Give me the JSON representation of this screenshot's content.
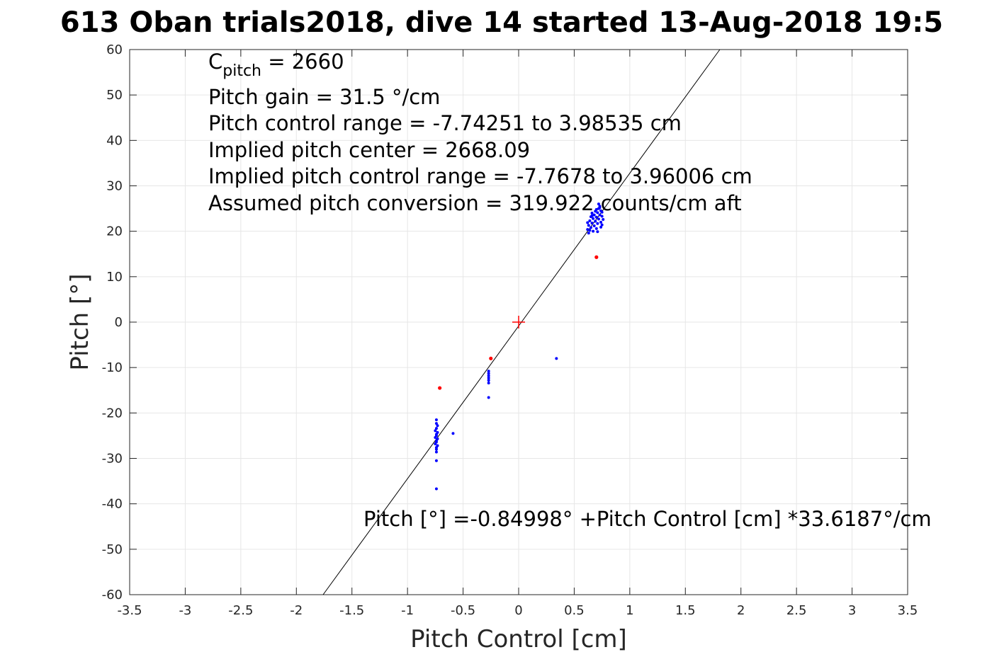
{
  "chart_data": {
    "type": "scatter",
    "title": "613 Oban trials2018, dive 14 started 13-Aug-2018 19:5",
    "xlabel": "Pitch Control [cm]",
    "ylabel": "Pitch [°]",
    "xlim": [
      -3.5,
      3.5
    ],
    "ylim": [
      -60,
      60
    ],
    "xticks": [
      -3.5,
      -3,
      -2.5,
      -2,
      -1.5,
      -1,
      -0.5,
      0,
      0.5,
      1,
      1.5,
      2,
      2.5,
      3,
      3.5
    ],
    "yticks": [
      -60,
      -50,
      -40,
      -30,
      -20,
      -10,
      0,
      10,
      20,
      30,
      40,
      50,
      60
    ],
    "grid": true,
    "annotations": {
      "cpitch_prefix": "C",
      "cpitch_sub": "pitch",
      "cpitch_value": " = 2660",
      "pitch_gain": "Pitch gain = 31.5 °/cm",
      "pitch_control_range": "Pitch control range = -7.74251 to 3.98535 cm",
      "implied_center": "Implied pitch center = 2668.09",
      "implied_range": "Implied pitch control range = -7.7678 to 3.96006 cm",
      "assumed_conversion": "Assumed pitch conversion = 319.922 counts/cm aft",
      "fit_equation": "Pitch [°] =-0.84998° +Pitch Control [cm] *33.6187°/cm"
    },
    "fit_line": {
      "intercept": -0.84998,
      "slope": 33.6187,
      "color": "#000000"
    },
    "center_marker": {
      "x": 0,
      "y": 0,
      "color": "#ff0000"
    },
    "series": [
      {
        "color": "#0000ff",
        "points": [
          [
            -0.74,
            -21.5
          ],
          [
            -0.74,
            -22.3
          ],
          [
            -0.73,
            -22.8
          ],
          [
            -0.74,
            -23.4
          ],
          [
            -0.75,
            -23.9
          ],
          [
            -0.73,
            -24.3
          ],
          [
            -0.74,
            -24.7
          ],
          [
            -0.74,
            -25.0
          ],
          [
            -0.75,
            -25.4
          ],
          [
            -0.73,
            -25.7
          ],
          [
            -0.74,
            -26.1
          ],
          [
            -0.74,
            -26.4
          ],
          [
            -0.75,
            -26.8
          ],
          [
            -0.73,
            -27.2
          ],
          [
            -0.74,
            -27.6
          ],
          [
            -0.74,
            -28.0
          ],
          [
            -0.74,
            -28.6
          ],
          [
            -0.74,
            -30.5
          ],
          [
            -0.74,
            -36.7
          ],
          [
            -0.59,
            -24.5
          ],
          [
            -0.27,
            -10.8
          ],
          [
            -0.27,
            -11.3
          ],
          [
            -0.27,
            -11.8
          ],
          [
            -0.27,
            -12.3
          ],
          [
            -0.27,
            -12.8
          ],
          [
            -0.27,
            -13.4
          ],
          [
            -0.27,
            -16.6
          ],
          [
            0.34,
            -8.0
          ],
          [
            0.63,
            19.6
          ],
          [
            0.64,
            20.2
          ],
          [
            0.65,
            20.8
          ],
          [
            0.63,
            21.3
          ],
          [
            0.66,
            21.8
          ],
          [
            0.64,
            22.3
          ],
          [
            0.67,
            22.8
          ],
          [
            0.65,
            23.2
          ],
          [
            0.68,
            23.6
          ],
          [
            0.66,
            24.0
          ],
          [
            0.69,
            24.4
          ],
          [
            0.67,
            20.0
          ],
          [
            0.7,
            20.6
          ],
          [
            0.68,
            21.2
          ],
          [
            0.71,
            21.7
          ],
          [
            0.69,
            22.2
          ],
          [
            0.72,
            22.7
          ],
          [
            0.7,
            23.1
          ],
          [
            0.73,
            23.6
          ],
          [
            0.71,
            24.1
          ],
          [
            0.74,
            24.5
          ],
          [
            0.72,
            25.0
          ],
          [
            0.73,
            25.5
          ],
          [
            0.72,
            26.0
          ],
          [
            0.75,
            21.4
          ],
          [
            0.74,
            22.0
          ],
          [
            0.76,
            22.6
          ],
          [
            0.75,
            23.3
          ],
          [
            0.71,
            19.9
          ],
          [
            0.74,
            20.9
          ],
          [
            0.62,
            20.4
          ],
          [
            0.62,
            21.9
          ],
          [
            0.66,
            23.4
          ],
          [
            0.7,
            24.8
          ],
          [
            0.73,
            25.2
          ],
          [
            0.75,
            24.2
          ]
        ]
      },
      {
        "color": "#ff0000",
        "points": [
          [
            -0.71,
            -14.5
          ],
          [
            -0.25,
            -8.0
          ],
          [
            0.7,
            14.3
          ]
        ]
      }
    ]
  }
}
